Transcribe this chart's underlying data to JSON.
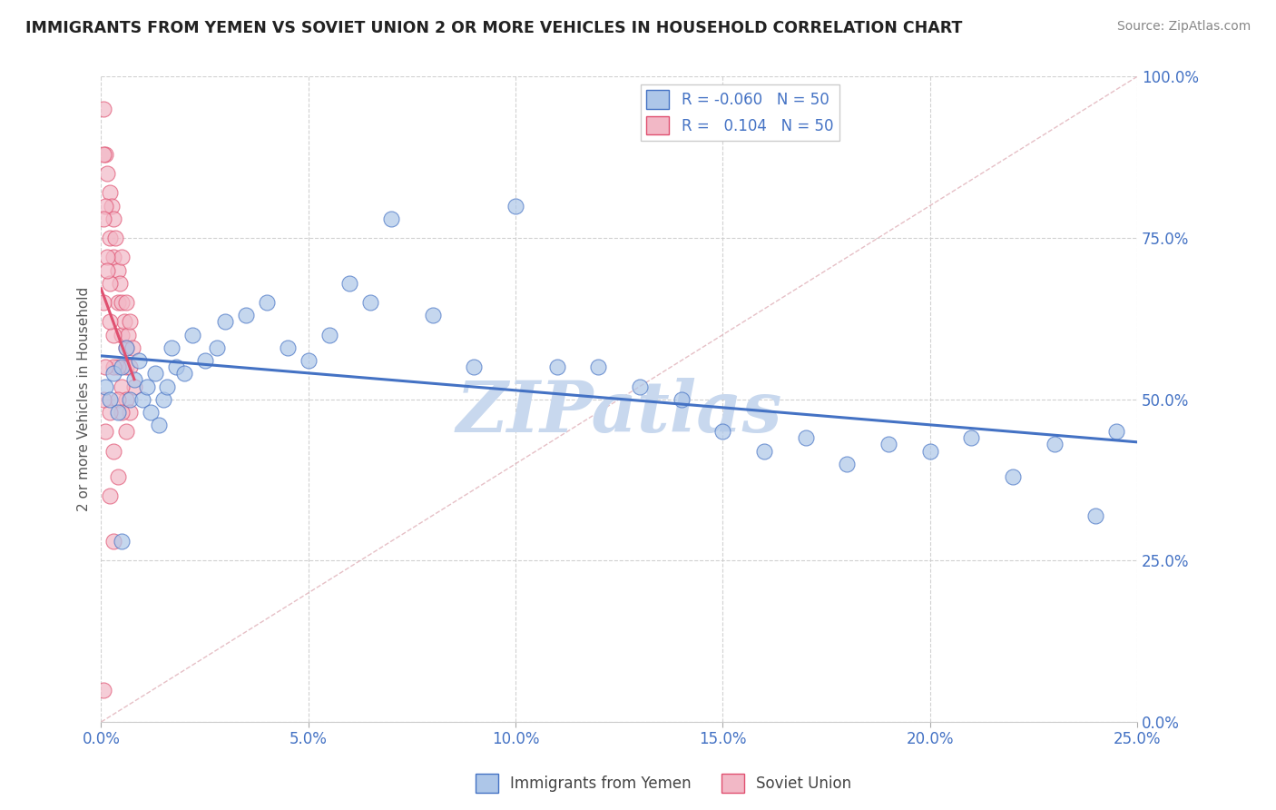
{
  "title": "IMMIGRANTS FROM YEMEN VS SOVIET UNION 2 OR MORE VEHICLES IN HOUSEHOLD CORRELATION CHART",
  "source": "Source: ZipAtlas.com",
  "ylabel": "2 or more Vehicles in Household",
  "watermark": "ZIPatlas",
  "xlim": [
    0.0,
    0.25
  ],
  "ylim": [
    0.0,
    1.0
  ],
  "xticks": [
    0.0,
    0.05,
    0.1,
    0.15,
    0.2,
    0.25
  ],
  "yticks": [
    0.0,
    0.25,
    0.5,
    0.75,
    1.0
  ],
  "xticklabels": [
    "0.0%",
    "5.0%",
    "10.0%",
    "15.0%",
    "20.0%",
    "25.0%"
  ],
  "yticklabels": [
    "0.0%",
    "25.0%",
    "50.0%",
    "75.0%",
    "100.0%"
  ],
  "legend_labels": [
    "Immigrants from Yemen",
    "Soviet Union"
  ],
  "R_yemen": -0.06,
  "R_soviet": 0.104,
  "N_yemen": 50,
  "N_soviet": 50,
  "color_yemen": "#adc6e8",
  "color_soviet": "#f2b8c6",
  "line_color_yemen": "#4472c4",
  "line_color_soviet": "#e05070",
  "background_color": "#ffffff",
  "grid_color": "#cccccc",
  "title_color": "#222222",
  "source_color": "#888888",
  "watermark_color": "#c8d8ee",
  "diag_color": "#d0d0d0",
  "yemen_x": [
    0.001,
    0.002,
    0.003,
    0.004,
    0.005,
    0.006,
    0.007,
    0.008,
    0.009,
    0.01,
    0.011,
    0.012,
    0.013,
    0.014,
    0.015,
    0.016,
    0.017,
    0.018,
    0.02,
    0.022,
    0.025,
    0.028,
    0.03,
    0.035,
    0.04,
    0.045,
    0.05,
    0.055,
    0.06,
    0.065,
    0.07,
    0.08,
    0.09,
    0.1,
    0.11,
    0.12,
    0.13,
    0.14,
    0.15,
    0.16,
    0.17,
    0.18,
    0.19,
    0.2,
    0.21,
    0.22,
    0.23,
    0.24,
    0.245,
    0.005
  ],
  "yemen_y": [
    0.52,
    0.5,
    0.54,
    0.48,
    0.55,
    0.58,
    0.5,
    0.53,
    0.56,
    0.5,
    0.52,
    0.48,
    0.54,
    0.46,
    0.5,
    0.52,
    0.58,
    0.55,
    0.54,
    0.6,
    0.56,
    0.58,
    0.62,
    0.63,
    0.65,
    0.58,
    0.56,
    0.6,
    0.68,
    0.65,
    0.78,
    0.63,
    0.55,
    0.8,
    0.55,
    0.55,
    0.52,
    0.5,
    0.45,
    0.42,
    0.44,
    0.4,
    0.43,
    0.42,
    0.44,
    0.38,
    0.43,
    0.32,
    0.45,
    0.28
  ],
  "soviet_x": [
    0.0005,
    0.001,
    0.0015,
    0.002,
    0.002,
    0.0025,
    0.003,
    0.003,
    0.0035,
    0.004,
    0.004,
    0.0045,
    0.005,
    0.005,
    0.005,
    0.0055,
    0.006,
    0.006,
    0.006,
    0.0065,
    0.007,
    0.007,
    0.0075,
    0.008,
    0.0005,
    0.001,
    0.0015,
    0.002,
    0.003,
    0.004,
    0.005,
    0.006,
    0.007,
    0.0005,
    0.0015,
    0.002,
    0.003,
    0.004,
    0.005,
    0.006,
    0.0005,
    0.001,
    0.002,
    0.003,
    0.004,
    0.0005,
    0.001,
    0.002,
    0.003,
    0.0005
  ],
  "soviet_y": [
    0.95,
    0.88,
    0.85,
    0.82,
    0.75,
    0.8,
    0.78,
    0.72,
    0.75,
    0.7,
    0.65,
    0.68,
    0.72,
    0.65,
    0.6,
    0.62,
    0.65,
    0.58,
    0.55,
    0.6,
    0.62,
    0.55,
    0.58,
    0.52,
    0.88,
    0.8,
    0.72,
    0.68,
    0.6,
    0.55,
    0.52,
    0.5,
    0.48,
    0.78,
    0.7,
    0.62,
    0.55,
    0.5,
    0.48,
    0.45,
    0.65,
    0.55,
    0.48,
    0.42,
    0.38,
    0.5,
    0.45,
    0.35,
    0.28,
    0.05
  ]
}
